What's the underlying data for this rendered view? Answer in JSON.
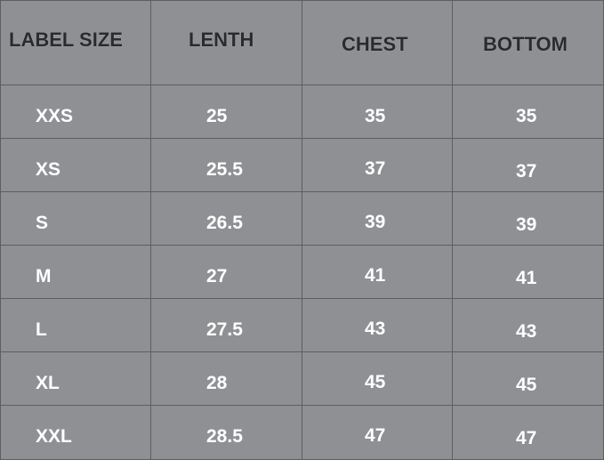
{
  "table": {
    "headers": [
      "LABEL SIZE",
      "LENTH",
      "CHEST",
      "BOTTOM"
    ],
    "rows": [
      [
        "XXS",
        "25",
        "35",
        "35"
      ],
      [
        "XS",
        "25.5",
        "37",
        "37"
      ],
      [
        "S",
        "26.5",
        "39",
        "39"
      ],
      [
        "M",
        "27",
        "41",
        "41"
      ],
      [
        "L",
        "27.5",
        "43",
        "43"
      ],
      [
        "XL",
        "28",
        "45",
        "45"
      ],
      [
        "XXL",
        "28.5",
        "47",
        "47"
      ]
    ]
  },
  "colors": {
    "background": "#8f9094",
    "header_text": "#2b2b2d",
    "value_text": "#ffffff",
    "grid": "#5e5e62"
  }
}
